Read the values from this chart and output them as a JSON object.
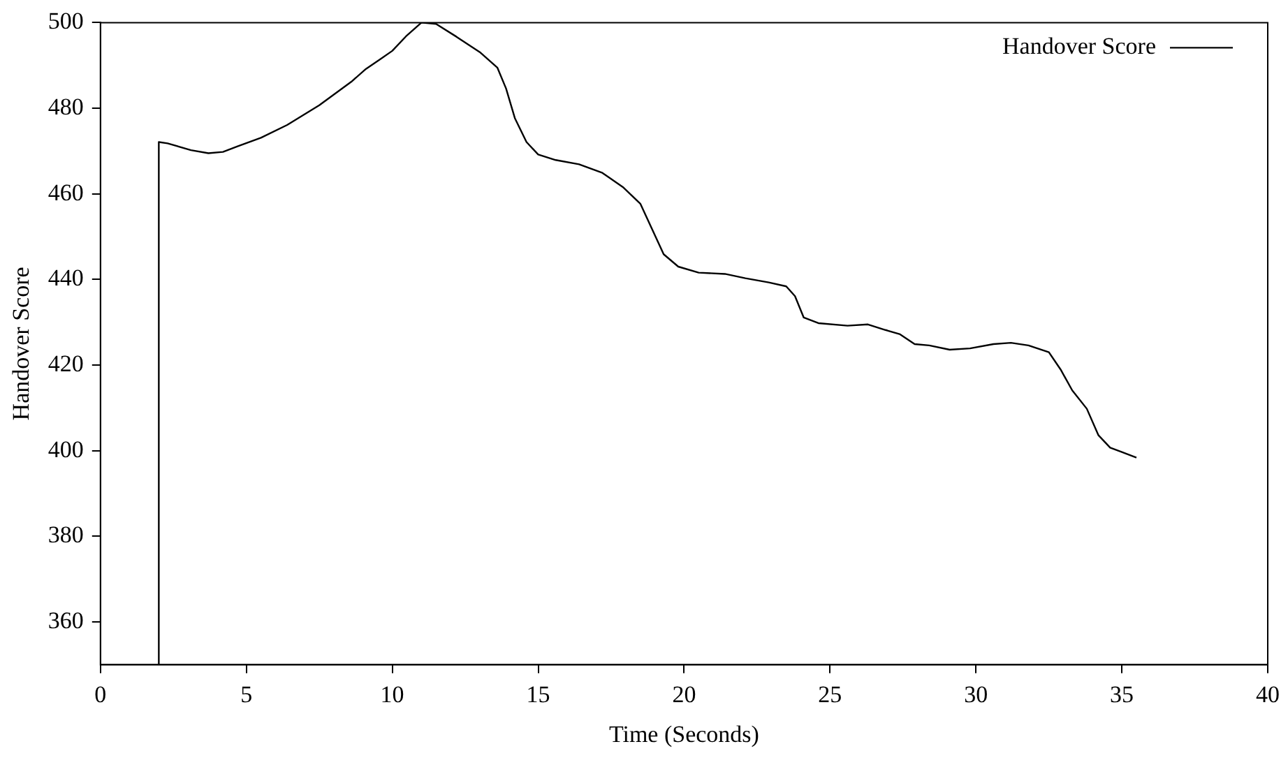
{
  "chart_data": {
    "type": "line",
    "xlabel": "Time (Seconds)",
    "ylabel": "Handover Score",
    "series": [
      {
        "name": "Handover Score",
        "color": "#000000",
        "x": [
          2,
          2,
          2.3,
          3.1,
          3.7,
          4.2,
          4.7,
          5.5,
          6.4,
          7.5,
          8.6,
          9.1,
          9.6,
          10,
          10.5,
          11,
          11.5,
          12.2,
          13,
          13.6,
          13.9,
          14.2,
          14.6,
          15,
          15.6,
          16.4,
          17.2,
          17.9,
          18.5,
          18.9,
          19.3,
          19.8,
          20.5,
          21.4,
          22.1,
          22.9,
          23.5,
          23.8,
          24.1,
          24.6,
          25.6,
          26.3,
          26.9,
          27.4,
          27.9,
          28.4,
          29.1,
          29.8,
          30.6,
          31.2,
          31.8,
          32.5,
          32.9,
          33.3,
          33.8,
          34.2,
          34.6,
          35,
          35.5
        ],
        "values": [
          350,
          472.1,
          471.8,
          470.2,
          469.5,
          469.8,
          471.1,
          473.1,
          476.1,
          480.7,
          486.2,
          489.2,
          491.5,
          493.4,
          497,
          500,
          499.7,
          496.7,
          493.1,
          489.5,
          484.6,
          477.7,
          472.1,
          469.2,
          467.9,
          466.9,
          464.9,
          461.6,
          457.7,
          451.8,
          445.9,
          443,
          441.6,
          441.3,
          440.3,
          439.3,
          438.4,
          436.1,
          431.1,
          429.8,
          429.2,
          429.5,
          428.2,
          427.2,
          424.9,
          424.6,
          423.6,
          423.9,
          424.9,
          425.2,
          424.6,
          423,
          419,
          414.1,
          409.8,
          403.6,
          400.7,
          399.7,
          398.4
        ]
      }
    ],
    "xlim": [
      0,
      40
    ],
    "xticks": [
      0,
      5,
      10,
      15,
      20,
      25,
      30,
      35,
      40
    ],
    "ylim": [
      350,
      500
    ],
    "yticks": [
      360,
      380,
      400,
      420,
      440,
      460,
      480,
      500
    ],
    "grid": false,
    "legend": "top right",
    "marker": "none",
    "line_style": "solid"
  }
}
